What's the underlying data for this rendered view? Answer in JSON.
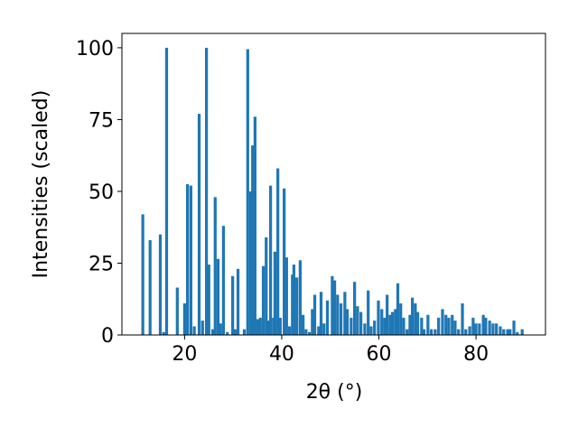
{
  "chart_data": {
    "type": "bar",
    "xlabel": "2θ (°)",
    "ylabel": "Intensities (scaled)",
    "color": "#1f77b4",
    "bar_width": 0.6,
    "x": [
      11.4,
      12.9,
      15.0,
      15.7,
      16.3,
      18.5,
      20.0,
      20.6,
      21.3,
      22.0,
      23.0,
      23.7,
      24.5,
      25.0,
      25.8,
      26.3,
      26.9,
      27.4,
      28.0,
      28.8,
      29.9,
      30.4,
      31.0,
      32.3,
      33.0,
      33.6,
      34.0,
      34.5,
      35.1,
      35.6,
      36.2,
      36.8,
      37.3,
      37.7,
      38.3,
      38.6,
      39.2,
      39.7,
      40.5,
      41.0,
      41.6,
      42.2,
      42.5,
      43.1,
      43.8,
      44.4,
      45.0,
      45.7,
      46.3,
      46.8,
      47.6,
      48.1,
      48.7,
      49.4,
      50.4,
      50.9,
      51.5,
      52.2,
      53.0,
      53.5,
      54.3,
      55.0,
      55.6,
      56.3,
      57.1,
      57.8,
      58.4,
      59.1,
      59.9,
      60.6,
      61.2,
      61.7,
      62.3,
      62.8,
      63.4,
      63.9,
      64.5,
      65.1,
      65.8,
      66.4,
      66.9,
      67.5,
      68.0,
      68.8,
      69.3,
      70.1,
      70.8,
      71.6,
      72.3,
      73.1,
      73.8,
      74.4,
      75.1,
      75.7,
      76.4,
      77.2,
      77.9,
      78.7,
      79.4,
      80.0,
      80.7,
      81.5,
      82.0,
      82.8,
      83.5,
      84.2,
      85.0,
      85.7,
      86.5,
      87.0,
      87.8,
      88.5,
      89.5
    ],
    "values": [
      42,
      33,
      35,
      1,
      100,
      16.5,
      11,
      52.5,
      52,
      3,
      77,
      5,
      100,
      24.5,
      2,
      48,
      26.5,
      4,
      38,
      1,
      20.5,
      2,
      23,
      2,
      99.5,
      50,
      66,
      76,
      5.5,
      6,
      24,
      34,
      5,
      52,
      6,
      29,
      58,
      6,
      51,
      27,
      3,
      21,
      24.5,
      20,
      26,
      7,
      2,
      1,
      9,
      14,
      3,
      15,
      4,
      12,
      20.5,
      19,
      14,
      11,
      15,
      9,
      6,
      18.5,
      10,
      8,
      4,
      15.5,
      3,
      5,
      12,
      9,
      6,
      14,
      7,
      8,
      9,
      18,
      11,
      6,
      2,
      7,
      13,
      11,
      8,
      6,
      2,
      7,
      2,
      2,
      6,
      9,
      7,
      6,
      7,
      5,
      2,
      11,
      2,
      3,
      6,
      4,
      4,
      7,
      6,
      5,
      4,
      4,
      3,
      2,
      2,
      2,
      5,
      1,
      2
    ],
    "xlim": [
      7.1,
      94.3
    ],
    "ylim": [
      0,
      105
    ],
    "xticks": [
      20,
      40,
      60,
      80
    ],
    "yticks": [
      0,
      25,
      50,
      75,
      100
    ]
  }
}
